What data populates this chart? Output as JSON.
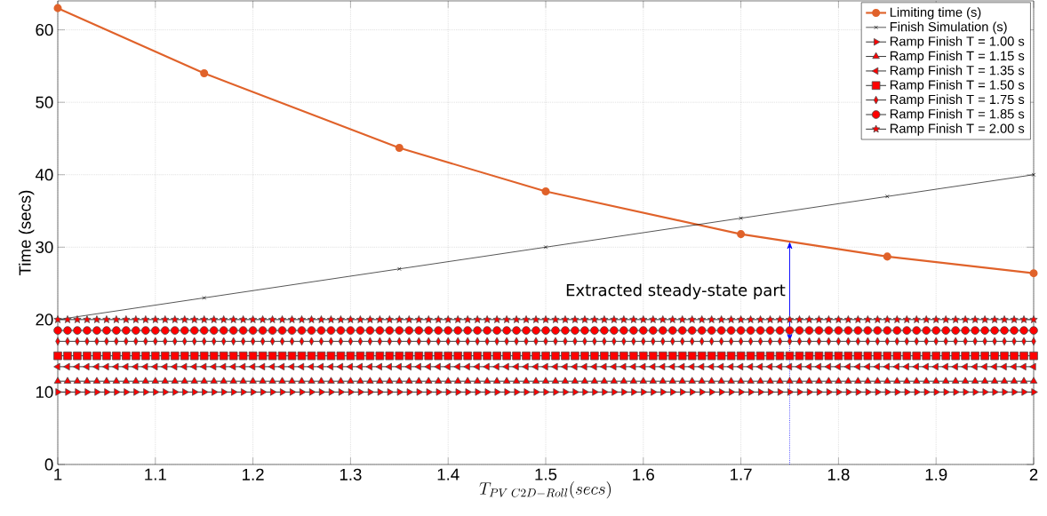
{
  "chart_data": {
    "type": "line",
    "xlabel": "T_{PV\\;C2D-Roll}(secs)",
    "ylabel": "Time (secs)",
    "xlim": [
      1,
      2
    ],
    "ylim": [
      0,
      64
    ],
    "xticks": [
      1,
      1.1,
      1.2,
      1.3,
      1.4,
      1.5,
      1.6,
      1.7,
      1.8,
      1.9,
      2
    ],
    "yticks": [
      0,
      10,
      20,
      30,
      40,
      50,
      60
    ],
    "grid": true,
    "legend": "top right",
    "line_style": "solid",
    "annotations": [
      {
        "text": "Extracted steady-state part",
        "x": 1.75,
        "y": 17
      }
    ],
    "x": [
      1,
      1.01,
      1.02,
      1.03,
      1.04,
      1.05,
      1.06,
      1.07,
      1.08,
      1.09,
      1.1,
      1.11,
      1.12,
      1.13,
      1.14,
      1.15,
      1.16,
      1.17,
      1.18,
      1.19,
      1.2,
      1.21,
      1.22,
      1.23,
      1.24,
      1.25,
      1.26,
      1.27,
      1.28,
      1.29,
      1.3,
      1.31,
      1.32,
      1.33,
      1.34,
      1.35,
      1.36,
      1.37,
      1.38,
      1.39,
      1.4,
      1.41,
      1.42,
      1.43,
      1.44,
      1.45,
      1.46,
      1.47,
      1.48,
      1.49,
      1.5,
      1.51,
      1.52,
      1.53,
      1.54,
      1.55,
      1.56,
      1.57,
      1.58,
      1.59,
      1.6,
      1.61,
      1.62,
      1.63,
      1.64,
      1.65,
      1.66,
      1.67,
      1.68,
      1.69,
      1.7,
      1.71,
      1.72,
      1.73,
      1.74,
      1.75,
      1.76,
      1.77,
      1.78,
      1.79,
      1.8,
      1.81,
      1.82,
      1.83,
      1.84,
      1.85,
      1.86,
      1.87,
      1.88,
      1.89,
      1.9,
      1.91,
      1.92,
      1.93,
      1.94,
      1.95,
      1.96,
      1.97,
      1.98,
      1.99,
      2
    ],
    "series": [
      {
        "name": "Limiting time (s)",
        "color": "#e0622a",
        "marker": "circle",
        "x": [
          1,
          1.15,
          1.35,
          1.5,
          1.7,
          1.85,
          2
        ],
        "values": [
          63,
          54,
          43.7,
          37.7,
          31.8,
          28.7,
          26.4
        ]
      },
      {
        "name": "Finish Simulation (s)",
        "color": "#000000",
        "marker": "cross",
        "x": [
          1,
          1.15,
          1.35,
          1.5,
          1.7,
          1.85,
          2
        ],
        "values": [
          20,
          23,
          27,
          30,
          34,
          37,
          40
        ]
      },
      {
        "name": "Ramp Finish T = 1.00 s",
        "color": "#ff0000",
        "marker": "triangle-right",
        "values": [
          10,
          10,
          10,
          10,
          10,
          10,
          10,
          10,
          10,
          10,
          10,
          10,
          10,
          10,
          10,
          10,
          10,
          10,
          10,
          10,
          10,
          10,
          10,
          10,
          10,
          10,
          10,
          10,
          10,
          10,
          10,
          10,
          10,
          10,
          10,
          10,
          10,
          10,
          10,
          10,
          10,
          10,
          10,
          10,
          10,
          10,
          10,
          10,
          10,
          10,
          10,
          10,
          10,
          10,
          10,
          10,
          10,
          10,
          10,
          10,
          10,
          10,
          10,
          10,
          10,
          10,
          10,
          10,
          10,
          10,
          10,
          10,
          10,
          10,
          10,
          10,
          10,
          10,
          10,
          10,
          10,
          10,
          10,
          10,
          10,
          10,
          10,
          10,
          10,
          10,
          10,
          10,
          10,
          10,
          10,
          10,
          10,
          10,
          10,
          10,
          10
        ]
      },
      {
        "name": "Ramp Finish T = 1.15 s",
        "color": "#ff0000",
        "marker": "triangle",
        "values": [
          11.5,
          11.5,
          11.5,
          11.5,
          11.5,
          11.5,
          11.5,
          11.5,
          11.5,
          11.5,
          11.5,
          11.5,
          11.5,
          11.5,
          11.5,
          11.5,
          11.5,
          11.5,
          11.5,
          11.5,
          11.5,
          11.5,
          11.5,
          11.5,
          11.5,
          11.5,
          11.5,
          11.5,
          11.5,
          11.5,
          11.5,
          11.5,
          11.5,
          11.5,
          11.5,
          11.5,
          11.5,
          11.5,
          11.5,
          11.5,
          11.5,
          11.5,
          11.5,
          11.5,
          11.5,
          11.5,
          11.5,
          11.5,
          11.5,
          11.5,
          11.5,
          11.5,
          11.5,
          11.5,
          11.5,
          11.5,
          11.5,
          11.5,
          11.5,
          11.5,
          11.5,
          11.5,
          11.5,
          11.5,
          11.5,
          11.5,
          11.5,
          11.5,
          11.5,
          11.5,
          11.5,
          11.5,
          11.5,
          11.5,
          11.5,
          11.5,
          11.5,
          11.5,
          11.5,
          11.5,
          11.5,
          11.5,
          11.5,
          11.5,
          11.5,
          11.5,
          11.5,
          11.5,
          11.5,
          11.5,
          11.5,
          11.5,
          11.5,
          11.5,
          11.5,
          11.5,
          11.5,
          11.5,
          11.5,
          11.5,
          11.5
        ]
      },
      {
        "name": "Ramp Finish T = 1.35 s",
        "color": "#ff0000",
        "marker": "triangle-left",
        "values": [
          13.5,
          13.5,
          13.5,
          13.5,
          13.5,
          13.5,
          13.5,
          13.5,
          13.5,
          13.5,
          13.5,
          13.5,
          13.5,
          13.5,
          13.5,
          13.5,
          13.5,
          13.5,
          13.5,
          13.5,
          13.5,
          13.5,
          13.5,
          13.5,
          13.5,
          13.5,
          13.5,
          13.5,
          13.5,
          13.5,
          13.5,
          13.5,
          13.5,
          13.5,
          13.5,
          13.5,
          13.5,
          13.5,
          13.5,
          13.5,
          13.5,
          13.5,
          13.5,
          13.5,
          13.5,
          13.5,
          13.5,
          13.5,
          13.5,
          13.5,
          13.5,
          13.5,
          13.5,
          13.5,
          13.5,
          13.5,
          13.5,
          13.5,
          13.5,
          13.5,
          13.5,
          13.5,
          13.5,
          13.5,
          13.5,
          13.5,
          13.5,
          13.5,
          13.5,
          13.5,
          13.5,
          13.5,
          13.5,
          13.5,
          13.5,
          13.5,
          13.5,
          13.5,
          13.5,
          13.5,
          13.5,
          13.5,
          13.5,
          13.5,
          13.5,
          13.5,
          13.5,
          13.5,
          13.5,
          13.5,
          13.5,
          13.5,
          13.5,
          13.5,
          13.5,
          13.5,
          13.5,
          13.5,
          13.5,
          13.5,
          13.5
        ]
      },
      {
        "name": "Ramp Finish T = 1.50 s",
        "color": "#ff0000",
        "marker": "square",
        "values": [
          15,
          15,
          15,
          15,
          15,
          15,
          15,
          15,
          15,
          15,
          15,
          15,
          15,
          15,
          15,
          15,
          15,
          15,
          15,
          15,
          15,
          15,
          15,
          15,
          15,
          15,
          15,
          15,
          15,
          15,
          15,
          15,
          15,
          15,
          15,
          15,
          15,
          15,
          15,
          15,
          15,
          15,
          15,
          15,
          15,
          15,
          15,
          15,
          15,
          15,
          15,
          15,
          15,
          15,
          15,
          15,
          15,
          15,
          15,
          15,
          15,
          15,
          15,
          15,
          15,
          15,
          15,
          15,
          15,
          15,
          15,
          15,
          15,
          15,
          15,
          15,
          15,
          15,
          15,
          15,
          15,
          15,
          15,
          15,
          15,
          15,
          15,
          15,
          15,
          15,
          15,
          15,
          15,
          15,
          15,
          15,
          15,
          15,
          15,
          15,
          15
        ]
      },
      {
        "name": "Ramp Finish T = 1.75 s",
        "color": "#ff0000",
        "marker": "diamond",
        "values": [
          17,
          17,
          17,
          17,
          17,
          17,
          17,
          17,
          17,
          17,
          17,
          17,
          17,
          17,
          17,
          17,
          17,
          17,
          17,
          17,
          17,
          17,
          17,
          17,
          17,
          17,
          17,
          17,
          17,
          17,
          17,
          17,
          17,
          17,
          17,
          17,
          17,
          17,
          17,
          17,
          17,
          17,
          17,
          17,
          17,
          17,
          17,
          17,
          17,
          17,
          17,
          17,
          17,
          17,
          17,
          17,
          17,
          17,
          17,
          17,
          17,
          17,
          17,
          17,
          17,
          17,
          17,
          17,
          17,
          17,
          17,
          17,
          17,
          17,
          17,
          17,
          17,
          17,
          17,
          17,
          17,
          17,
          17,
          17,
          17,
          17,
          17,
          17,
          17,
          17,
          17,
          17,
          17,
          17,
          17,
          17,
          17,
          17,
          17,
          17,
          17
        ]
      },
      {
        "name": "Ramp Finish T = 1.85 s",
        "color": "#ff0000",
        "marker": "circle",
        "values": [
          18.5,
          18.5,
          18.5,
          18.5,
          18.5,
          18.5,
          18.5,
          18.5,
          18.5,
          18.5,
          18.5,
          18.5,
          18.5,
          18.5,
          18.5,
          18.5,
          18.5,
          18.5,
          18.5,
          18.5,
          18.5,
          18.5,
          18.5,
          18.5,
          18.5,
          18.5,
          18.5,
          18.5,
          18.5,
          18.5,
          18.5,
          18.5,
          18.5,
          18.5,
          18.5,
          18.5,
          18.5,
          18.5,
          18.5,
          18.5,
          18.5,
          18.5,
          18.5,
          18.5,
          18.5,
          18.5,
          18.5,
          18.5,
          18.5,
          18.5,
          18.5,
          18.5,
          18.5,
          18.5,
          18.5,
          18.5,
          18.5,
          18.5,
          18.5,
          18.5,
          18.5,
          18.5,
          18.5,
          18.5,
          18.5,
          18.5,
          18.5,
          18.5,
          18.5,
          18.5,
          18.5,
          18.5,
          18.5,
          18.5,
          18.5,
          18.5,
          18.5,
          18.5,
          18.5,
          18.5,
          18.5,
          18.5,
          18.5,
          18.5,
          18.5,
          18.5,
          18.5,
          18.5,
          18.5,
          18.5,
          18.5,
          18.5,
          18.5,
          18.5,
          18.5,
          18.5,
          18.5,
          18.5,
          18.5,
          18.5,
          18.5
        ]
      },
      {
        "name": "Ramp Finish T = 2.00 s",
        "color": "#ff0000",
        "marker": "star",
        "values": [
          20,
          20,
          20,
          20,
          20,
          20,
          20,
          20,
          20,
          20,
          20,
          20,
          20,
          20,
          20,
          20,
          20,
          20,
          20,
          20,
          20,
          20,
          20,
          20,
          20,
          20,
          20,
          20,
          20,
          20,
          20,
          20,
          20,
          20,
          20,
          20,
          20,
          20,
          20,
          20,
          20,
          20,
          20,
          20,
          20,
          20,
          20,
          20,
          20,
          20,
          20,
          20,
          20,
          20,
          20,
          20,
          20,
          20,
          20,
          20,
          20,
          20,
          20,
          20,
          20,
          20,
          20,
          20,
          20,
          20,
          20,
          20,
          20,
          20,
          20,
          20,
          20,
          20,
          20,
          20,
          20,
          20,
          20,
          20,
          20,
          20,
          20,
          20,
          20,
          20,
          20,
          20,
          20,
          20,
          20,
          20,
          20,
          20,
          20,
          20,
          20
        ]
      }
    ]
  }
}
